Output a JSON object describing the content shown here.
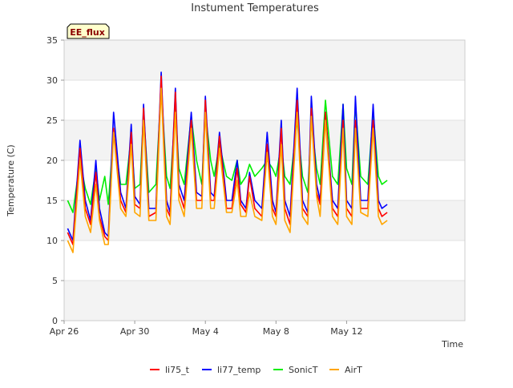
{
  "chart_data": {
    "type": "line",
    "title": "Instument Temperatures",
    "xlabel": "Time",
    "ylabel": "Temperature (C)",
    "badge": "EE_flux",
    "ylim": [
      0,
      35
    ],
    "xlim": [
      0,
      22.7
    ],
    "yticks": [
      0,
      5,
      10,
      15,
      20,
      25,
      30,
      35
    ],
    "xticks": [
      {
        "value": 0,
        "label": "Apr 26"
      },
      {
        "value": 4,
        "label": "Apr 30"
      },
      {
        "value": 8,
        "label": "May 4"
      },
      {
        "value": 12,
        "label": "May 8"
      },
      {
        "value": 16,
        "label": "May 12"
      }
    ],
    "grid": "horizontal bands",
    "legend_position": "bottom",
    "x": [
      0.2,
      0.5,
      0.9,
      1.2,
      1.5,
      1.8,
      2.0,
      2.3,
      2.5,
      2.8,
      3.2,
      3.5,
      3.8,
      4.0,
      4.3,
      4.5,
      4.8,
      5.2,
      5.5,
      5.8,
      6.0,
      6.3,
      6.5,
      6.8,
      7.2,
      7.5,
      7.8,
      8.0,
      8.3,
      8.5,
      8.8,
      9.2,
      9.5,
      9.8,
      10.0,
      10.3,
      10.5,
      10.8,
      11.2,
      11.5,
      11.8,
      12.0,
      12.3,
      12.5,
      12.8,
      13.2,
      13.5,
      13.8,
      14.0,
      14.3,
      14.5,
      14.8,
      15.2,
      15.5,
      15.8,
      16.0,
      16.3,
      16.5,
      16.8,
      17.2,
      17.5,
      17.8,
      18.0,
      18.3
    ],
    "series": [
      {
        "name": "li75_t",
        "color": "#ff0000",
        "values": [
          11,
          9.5,
          21.5,
          14,
          12,
          18.5,
          13,
          10.5,
          10,
          24,
          15,
          13.5,
          23.5,
          14.5,
          14,
          26.5,
          13,
          13.5,
          30.5,
          14,
          13,
          28.5,
          16,
          14,
          25,
          15,
          15,
          27.5,
          15,
          15,
          23,
          14,
          14,
          19,
          14.5,
          13.5,
          18,
          14,
          13,
          22,
          14,
          13,
          24,
          14,
          12,
          27.5,
          14,
          13,
          26.5,
          16,
          14.5,
          26,
          14,
          13,
          25,
          14,
          13,
          25,
          14,
          14,
          25,
          14,
          13,
          13.5
        ]
      },
      {
        "name": "li77_temp",
        "color": "#0000ff",
        "values": [
          11.5,
          10,
          22.5,
          15,
          12.5,
          20,
          14,
          11,
          10.5,
          26,
          16,
          14,
          24.5,
          15.5,
          14.5,
          27,
          14,
          14,
          31,
          15,
          13.5,
          29,
          17,
          15,
          26,
          16,
          15.5,
          28,
          16,
          15.5,
          23.5,
          15,
          15,
          20,
          15,
          14,
          18.5,
          15,
          14,
          23.5,
          15,
          13.5,
          25,
          15,
          13,
          29,
          15,
          13.5,
          28,
          17,
          15,
          26,
          15,
          14,
          27,
          15,
          14,
          28,
          15,
          15,
          27,
          15,
          14,
          14.5
        ]
      },
      {
        "name": "SonicT",
        "color": "#00ee00",
        "values": [
          15,
          13.5,
          20,
          16.5,
          14.5,
          19,
          15,
          18,
          14.5,
          23.5,
          17,
          17,
          23,
          16.5,
          17,
          26,
          16,
          17,
          29,
          18,
          16.5,
          26.5,
          19,
          17,
          25.5,
          20,
          17,
          26,
          20,
          18,
          22,
          18,
          17.5,
          20,
          17,
          18,
          19.5,
          18,
          19,
          20,
          19,
          18,
          22,
          18,
          17,
          25,
          18,
          16,
          25,
          19,
          17,
          27.5,
          18,
          17,
          27,
          19,
          17,
          27,
          18,
          17,
          26,
          18,
          17,
          17.5
        ]
      },
      {
        "name": "AirT",
        "color": "#ffa500",
        "values": [
          10,
          8.5,
          20,
          13,
          11,
          17,
          12.5,
          9.5,
          9.5,
          23.5,
          14,
          13,
          22,
          13.5,
          13,
          25,
          12.5,
          12.5,
          29,
          13,
          12,
          26,
          15,
          13,
          24,
          14,
          14,
          26,
          14,
          14,
          21.5,
          13.5,
          13.5,
          17.5,
          13,
          13,
          16,
          13,
          12.5,
          21,
          13,
          12,
          22,
          12.5,
          11,
          26,
          13,
          12,
          25.5,
          15.5,
          13,
          25,
          13,
          12,
          24,
          13,
          12,
          24,
          13.5,
          13,
          24,
          13,
          12,
          12.5
        ]
      }
    ]
  }
}
